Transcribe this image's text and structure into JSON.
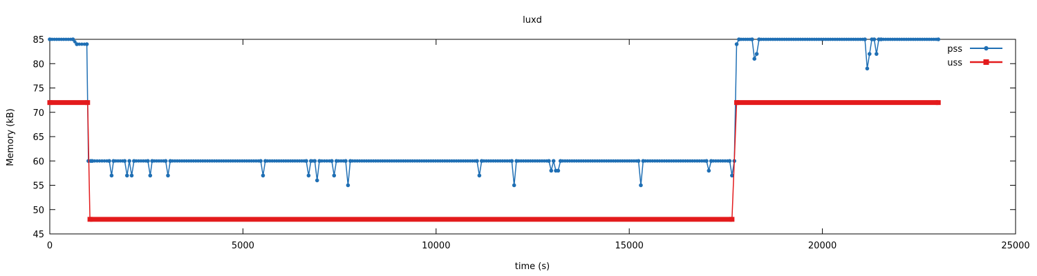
{
  "chart_data": {
    "type": "line",
    "title": "luxd",
    "xlabel": "time (s)",
    "ylabel": "Memory (kB)",
    "xlim": [
      0,
      25000
    ],
    "ylim": [
      45,
      85
    ],
    "xticks": [
      0,
      5000,
      10000,
      15000,
      20000,
      25000
    ],
    "yticks": [
      45,
      50,
      55,
      60,
      65,
      70,
      75,
      80,
      85
    ],
    "grid": false,
    "legend_position": "top-right",
    "series": [
      {
        "name": "pss",
        "color": "#1f6fb4",
        "marker": "circle",
        "x": [
          0,
          600,
          700,
          960,
          1000,
          1060,
          1100,
          1540,
          1600,
          1650,
          1940,
          2000,
          2060,
          2120,
          2180,
          2540,
          2600,
          2650,
          3000,
          3060,
          3120,
          5460,
          5520,
          5580,
          6640,
          6700,
          6760,
          6860,
          6920,
          6980,
          7300,
          7360,
          7420,
          7660,
          7720,
          7780,
          11060,
          11120,
          11180,
          11960,
          12020,
          12080,
          12920,
          12980,
          13040,
          13100,
          13160,
          13220,
          15240,
          15300,
          15360,
          17000,
          17060,
          17120,
          17600,
          17660,
          17720,
          17780,
          17840,
          18180,
          18240,
          18300,
          18360,
          21100,
          21160,
          21220,
          21280,
          21340,
          21400,
          21460,
          21520,
          23000
        ],
        "y": [
          85,
          85,
          84,
          84,
          60,
          60,
          60,
          60,
          57,
          60,
          60,
          57,
          60,
          57,
          60,
          60,
          57,
          60,
          60,
          57,
          60,
          60,
          57,
          60,
          60,
          57,
          60,
          60,
          56,
          60,
          60,
          57,
          60,
          60,
          55,
          60,
          60,
          57,
          60,
          60,
          55,
          60,
          60,
          58,
          60,
          58,
          58,
          60,
          60,
          55,
          60,
          60,
          58,
          60,
          60,
          57,
          60,
          84,
          85,
          85,
          81,
          82,
          85,
          85,
          79,
          82,
          85,
          85,
          82,
          85,
          85,
          85
        ]
      },
      {
        "name": "uss",
        "color": "#e31a1c",
        "marker": "square",
        "x": [
          0,
          980,
          1040,
          17660,
          17780,
          23000
        ],
        "y": [
          72,
          72,
          48,
          48,
          72,
          72
        ]
      }
    ]
  }
}
